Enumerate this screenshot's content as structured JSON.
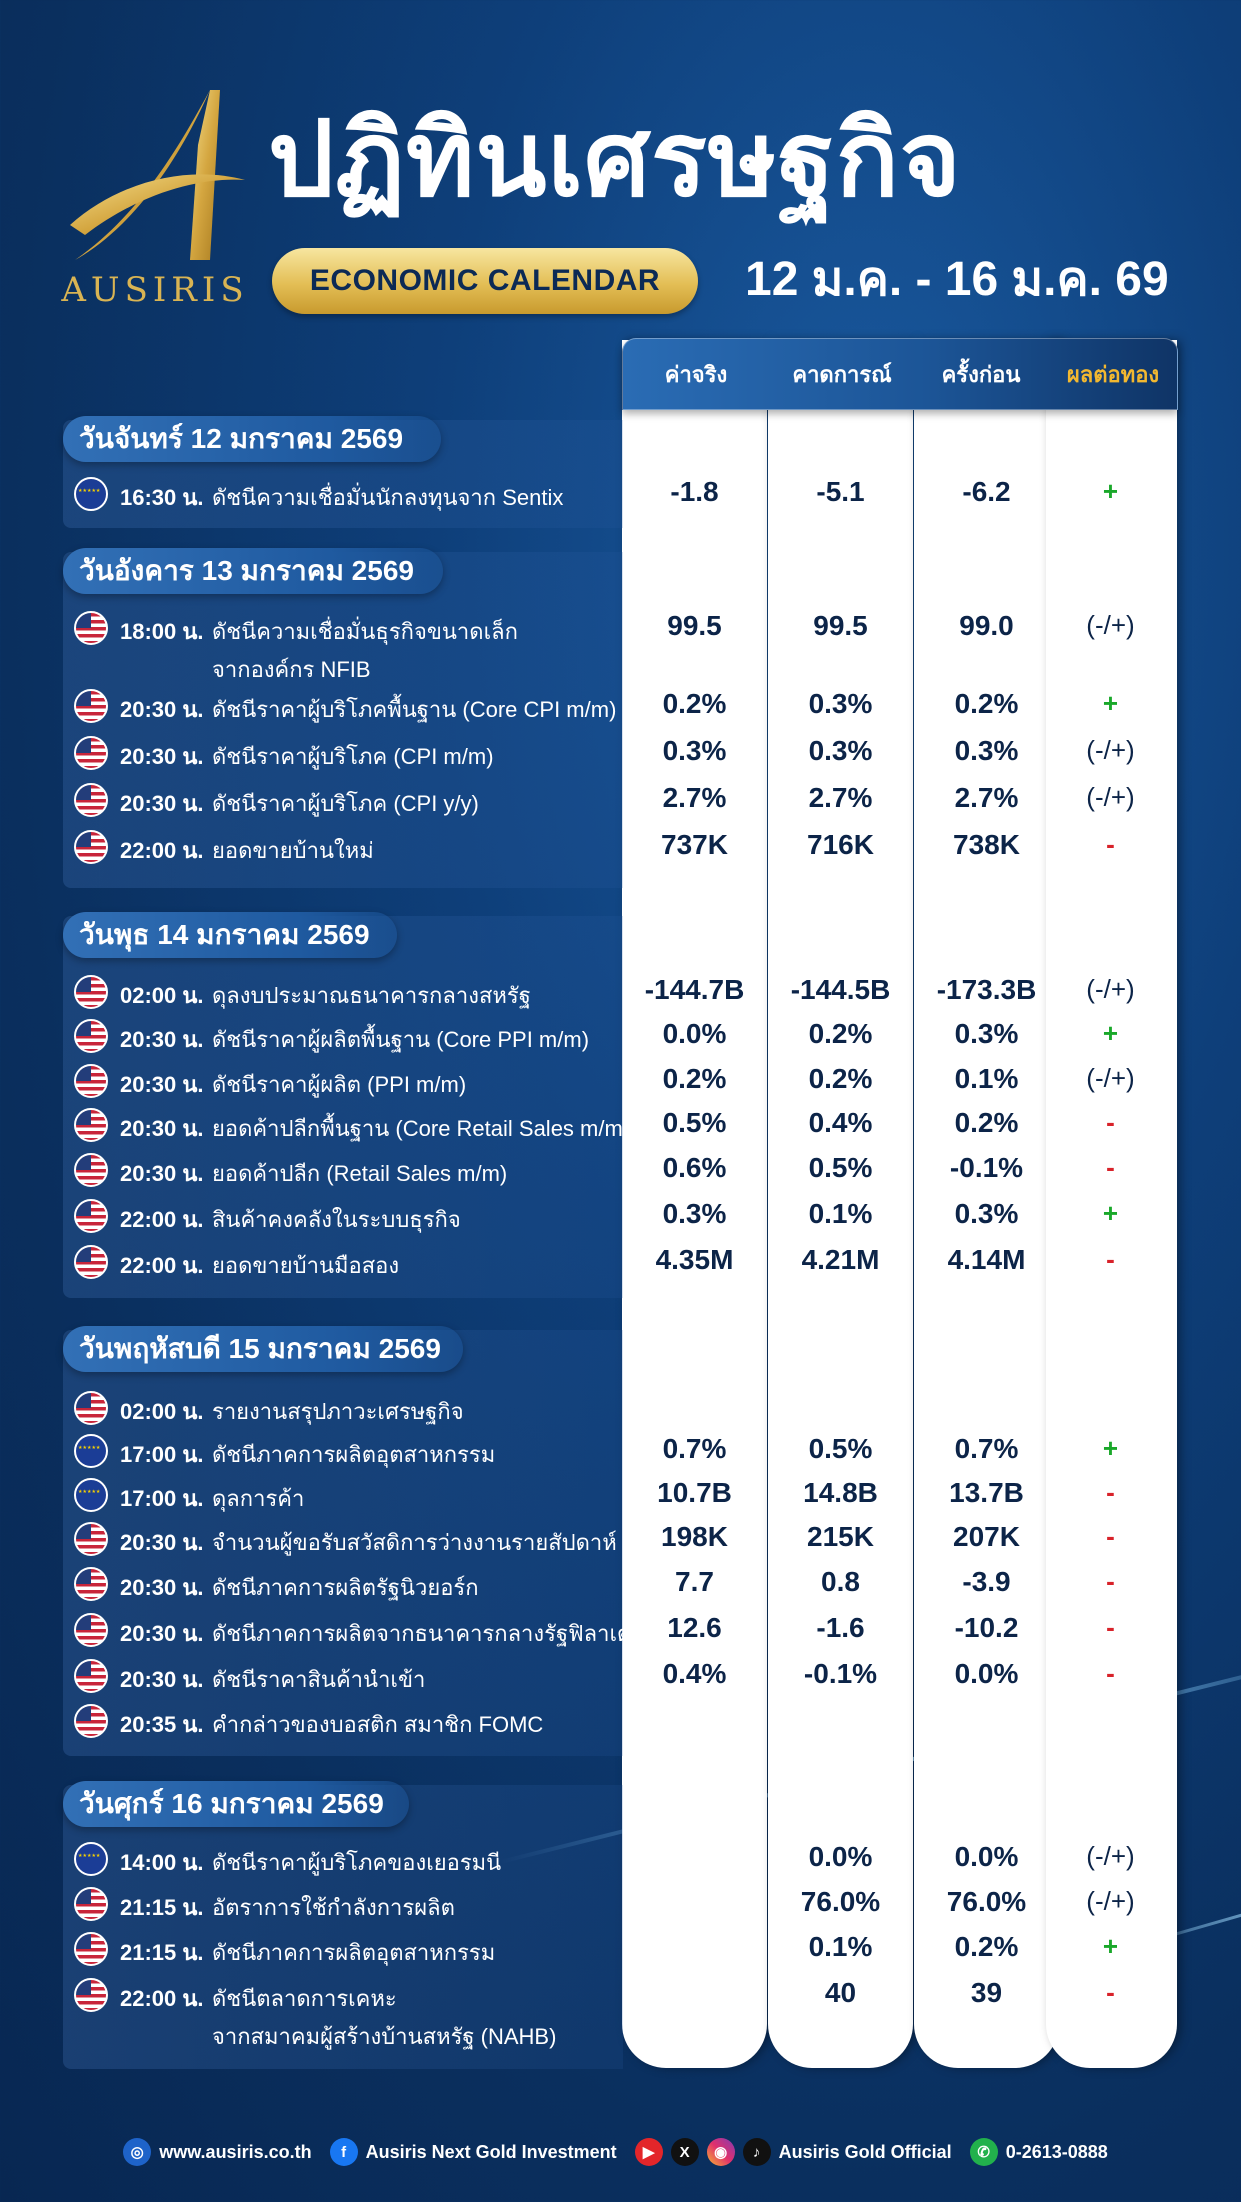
{
  "brand": {
    "name": "AUSIRIS"
  },
  "header": {
    "title": "ปฏิทินเศรษฐกิจ",
    "badge": "ECONOMIC CALENDAR",
    "date_range": "12 ม.ค. - 16 ม.ค. 69"
  },
  "columns": {
    "actual": "ค่าจริง",
    "forecast": "คาดการณ์",
    "previous": "ครั้งก่อน",
    "impact": "ผลต่อทอง"
  },
  "days": [
    {
      "label": "วันจันทร์ 12 มกราคม 2569",
      "events": [
        {
          "flag": "eu",
          "time": "16:30 น.",
          "name": "ดัชนีความเชื่อมั่นนักลงทุนจาก Sentix",
          "actual": "-1.8",
          "forecast": "-5.1",
          "previous": "-6.2",
          "impact": "+"
        }
      ]
    },
    {
      "label": "วันอังคาร 13 มกราคม 2569",
      "events": [
        {
          "flag": "us",
          "time": "18:00 น.",
          "name": "ดัชนีความเชื่อมั่นธุรกิจขนาดเล็ก",
          "name2": "จากองค์กร NFIB",
          "actual": "99.5",
          "forecast": "99.5",
          "previous": "99.0",
          "impact": "(-/+)"
        },
        {
          "flag": "us",
          "time": "20:30 น.",
          "name": "ดัชนีราคาผู้บริโภคพื้นฐาน (Core CPI m/m)",
          "actual": "0.2%",
          "forecast": "0.3%",
          "previous": "0.2%",
          "impact": "+"
        },
        {
          "flag": "us",
          "time": "20:30 น.",
          "name": "ดัชนีราคาผู้บริโภค (CPI m/m)",
          "actual": "0.3%",
          "forecast": "0.3%",
          "previous": "0.3%",
          "impact": "(-/+)"
        },
        {
          "flag": "us",
          "time": "20:30 น.",
          "name": "ดัชนีราคาผู้บริโภค (CPI y/y)",
          "actual": "2.7%",
          "forecast": "2.7%",
          "previous": "2.7%",
          "impact": "(-/+)"
        },
        {
          "flag": "us",
          "time": "22:00 น.",
          "name": "ยอดขายบ้านใหม่",
          "actual": "737K",
          "forecast": "716K",
          "previous": "738K",
          "impact": "-"
        }
      ]
    },
    {
      "label": "วันพุธ 14 มกราคม 2569",
      "events": [
        {
          "flag": "us",
          "time": "02:00 น.",
          "name": "ดุลงบประมาณธนาคารกลางสหรัฐ",
          "actual": "-144.7B",
          "forecast": "-144.5B",
          "previous": "-173.3B",
          "impact": "(-/+)"
        },
        {
          "flag": "us",
          "time": "20:30 น.",
          "name": "ดัชนีราคาผู้ผลิตพื้นฐาน (Core PPI m/m)",
          "actual": "0.0%",
          "forecast": "0.2%",
          "previous": "0.3%",
          "impact": "+"
        },
        {
          "flag": "us",
          "time": "20:30 น.",
          "name": "ดัชนีราคาผู้ผลิต (PPI m/m)",
          "actual": "0.2%",
          "forecast": "0.2%",
          "previous": "0.1%",
          "impact": "(-/+)"
        },
        {
          "flag": "us",
          "time": "20:30 น.",
          "name": "ยอดค้าปลีกพื้นฐาน (Core Retail Sales m/m)",
          "actual": "0.5%",
          "forecast": "0.4%",
          "previous": "0.2%",
          "impact": "-"
        },
        {
          "flag": "us",
          "time": "20:30 น.",
          "name": "ยอดค้าปลีก (Retail Sales m/m)",
          "actual": "0.6%",
          "forecast": "0.5%",
          "previous": "-0.1%",
          "impact": "-"
        },
        {
          "flag": "us",
          "time": "22:00 น.",
          "name": "สินค้าคงคลังในระบบธุรกิจ",
          "actual": "0.3%",
          "forecast": "0.1%",
          "previous": "0.3%",
          "impact": "+"
        },
        {
          "flag": "us",
          "time": "22:00 น.",
          "name": "ยอดขายบ้านมือสอง",
          "actual": "4.35M",
          "forecast": "4.21M",
          "previous": "4.14M",
          "impact": "-"
        }
      ]
    },
    {
      "label": "วันพฤหัสบดี 15 มกราคม 2569",
      "events": [
        {
          "flag": "us",
          "time": "02:00 น.",
          "name": "รายงานสรุปภาวะเศรษฐกิจ",
          "actual": "",
          "forecast": "",
          "previous": "",
          "impact": ""
        },
        {
          "flag": "eu",
          "time": "17:00 น.",
          "name": "ดัชนีภาคการผลิตอุตสาหกรรม",
          "actual": "0.7%",
          "forecast": "0.5%",
          "previous": "0.7%",
          "impact": "+"
        },
        {
          "flag": "eu",
          "time": "17:00 น.",
          "name": "ดุลการค้า",
          "actual": "10.7B",
          "forecast": "14.8B",
          "previous": "13.7B",
          "impact": "-"
        },
        {
          "flag": "us",
          "time": "20:30 น.",
          "name": "จำนวนผู้ขอรับสวัสดิการว่างงานรายสัปดาห์",
          "actual": "198K",
          "forecast": "215K",
          "previous": "207K",
          "impact": "-"
        },
        {
          "flag": "us",
          "time": "20:30 น.",
          "name": "ดัชนีภาคการผลิตรัฐนิวยอร์ก",
          "actual": "7.7",
          "forecast": "0.8",
          "previous": "-3.9",
          "impact": "-"
        },
        {
          "flag": "us",
          "time": "20:30 น.",
          "name": "ดัชนีภาคการผลิตจากธนาคารกลางรัฐฟิลาเดลเฟีย",
          "actual": "12.6",
          "forecast": "-1.6",
          "previous": "-10.2",
          "impact": "-"
        },
        {
          "flag": "us",
          "time": "20:30 น.",
          "name": "ดัชนีราคาสินค้านำเข้า",
          "actual": "0.4%",
          "forecast": "-0.1%",
          "previous": "0.0%",
          "impact": "-"
        },
        {
          "flag": "us",
          "time": "20:35 น.",
          "name": "คำกล่าวของบอสติก สมาชิก FOMC",
          "actual": "",
          "forecast": "",
          "previous": "",
          "impact": ""
        }
      ]
    },
    {
      "label": "วันศุกร์ 16 มกราคม 2569",
      "events": [
        {
          "flag": "eu",
          "time": "14:00 น.",
          "name": "ดัชนีราคาผู้บริโภคของเยอรมนี",
          "actual": "",
          "forecast": "0.0%",
          "previous": "0.0%",
          "impact": "(-/+)"
        },
        {
          "flag": "us",
          "time": "21:15 น.",
          "name": "อัตราการใช้กำลังการผลิต",
          "actual": "",
          "forecast": "76.0%",
          "previous": "76.0%",
          "impact": "(-/+)"
        },
        {
          "flag": "us",
          "time": "21:15 น.",
          "name": "ดัชนีภาคการผลิตอุตสาหกรรม",
          "actual": "",
          "forecast": "0.1%",
          "previous": "0.2%",
          "impact": "+"
        },
        {
          "flag": "us",
          "time": "22:00 น.",
          "name": "ดัชนีตลาดการเคหะ",
          "name2": "จากสมาคมผู้สร้างบ้านสหรัฐ (NAHB)",
          "actual": "",
          "forecast": "40",
          "previous": "39",
          "impact": "-"
        }
      ]
    }
  ],
  "footer": {
    "website": "www.ausiris.co.th",
    "facebook": "Ausiris Next Gold Investment",
    "social": "Ausiris Gold Official",
    "phone": "0-2613-0888"
  },
  "colors": {
    "navy": "#0c2448",
    "gold": "#d9b453",
    "plus": "#1aa82a",
    "minus": "#d8222a"
  }
}
